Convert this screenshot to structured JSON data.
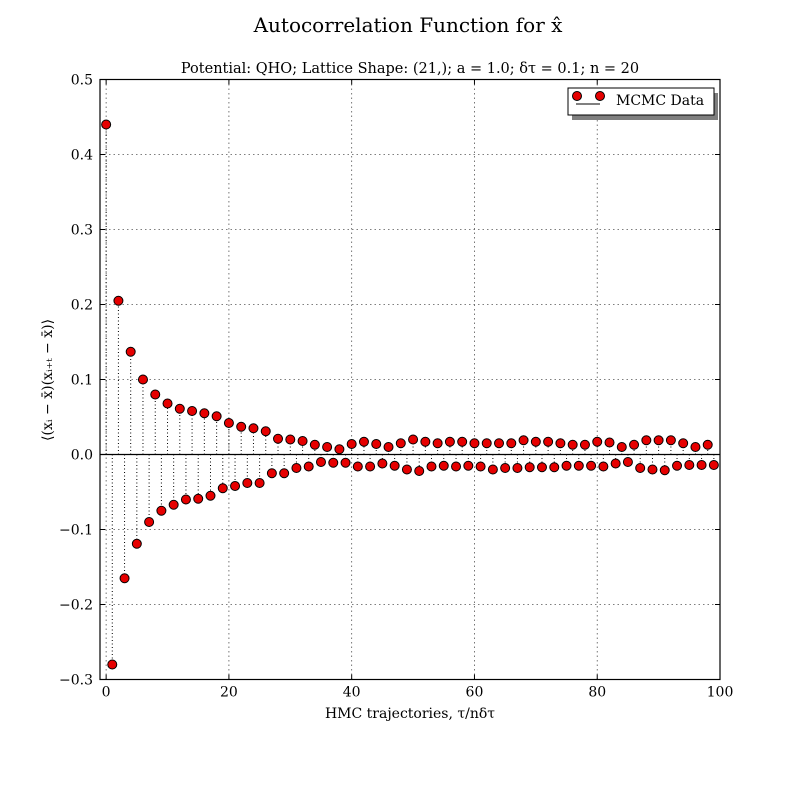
{
  "chart_data": {
    "type": "scatter",
    "title": "Autocorrelation Function for x̂",
    "subtitle": "Potential: QHO; Lattice Shape: (21,); a = 1.0; δτ = 0.1; n = 20",
    "xlabel": "HMC trajectories, τ/nδτ",
    "ylabel": "⟨(xᵢ − x̄)(xᵢ₊ₜ − x̄)⟩",
    "xlim": [
      -1,
      100
    ],
    "ylim": [
      -0.3,
      0.5
    ],
    "x_ticks": [
      0,
      20,
      40,
      60,
      80,
      100
    ],
    "x_tick_labels": [
      "0",
      "20",
      "40",
      "60",
      "80",
      "100"
    ],
    "y_ticks": [
      -0.3,
      -0.2,
      -0.1,
      0.0,
      0.1,
      0.2,
      0.3,
      0.4,
      0.5
    ],
    "y_tick_labels": [
      "−0.3",
      "−0.2",
      "−0.1",
      "0.0",
      "0.1",
      "0.2",
      "0.3",
      "0.4",
      "0.5"
    ],
    "grid": true,
    "legend": {
      "position": "top-right",
      "entries": [
        "MCMC Data"
      ]
    },
    "marker_color": "#e60000",
    "series": [
      {
        "name": "MCMC Data",
        "x": [
          0,
          1,
          2,
          3,
          4,
          5,
          6,
          7,
          8,
          9,
          10,
          11,
          12,
          13,
          14,
          15,
          16,
          17,
          18,
          19,
          20,
          21,
          22,
          23,
          24,
          25,
          26,
          27,
          28,
          29,
          30,
          31,
          32,
          33,
          34,
          35,
          36,
          37,
          38,
          39,
          40,
          41,
          42,
          43,
          44,
          45,
          46,
          47,
          48,
          49,
          50,
          51,
          52,
          53,
          54,
          55,
          56,
          57,
          58,
          59,
          60,
          61,
          62,
          63,
          64,
          65,
          66,
          67,
          68,
          69,
          70,
          71,
          72,
          73,
          74,
          75,
          76,
          77,
          78,
          79,
          80,
          81,
          82,
          83,
          84,
          85,
          86,
          87,
          88,
          89,
          90,
          91,
          92,
          93,
          94,
          95,
          96,
          97,
          98,
          99
        ],
        "y": [
          0.44,
          -0.28,
          0.205,
          -0.165,
          0.137,
          -0.119,
          0.1,
          -0.09,
          0.08,
          -0.075,
          0.068,
          -0.067,
          0.061,
          -0.06,
          0.058,
          -0.059,
          0.055,
          -0.055,
          0.051,
          -0.045,
          0.042,
          -0.042,
          0.037,
          -0.038,
          0.035,
          -0.038,
          0.031,
          -0.025,
          0.021,
          -0.025,
          0.02,
          -0.018,
          0.018,
          -0.016,
          0.013,
          -0.01,
          0.01,
          -0.011,
          0.007,
          -0.011,
          0.014,
          -0.016,
          0.017,
          -0.016,
          0.014,
          -0.012,
          0.01,
          -0.015,
          0.015,
          -0.02,
          0.02,
          -0.022,
          0.017,
          -0.016,
          0.015,
          -0.015,
          0.017,
          -0.016,
          0.017,
          -0.015,
          0.015,
          -0.016,
          0.015,
          -0.02,
          0.015,
          -0.018,
          0.015,
          -0.018,
          0.019,
          -0.017,
          0.017,
          -0.017,
          0.017,
          -0.017,
          0.015,
          -0.015,
          0.013,
          -0.015,
          0.013,
          -0.015,
          0.017,
          -0.016,
          0.016,
          -0.012,
          0.01,
          -0.01,
          0.013,
          -0.018,
          0.019,
          -0.02,
          0.019,
          -0.021,
          0.019,
          -0.015,
          0.015,
          -0.014,
          0.01,
          -0.014,
          0.013,
          -0.014
        ]
      }
    ]
  }
}
